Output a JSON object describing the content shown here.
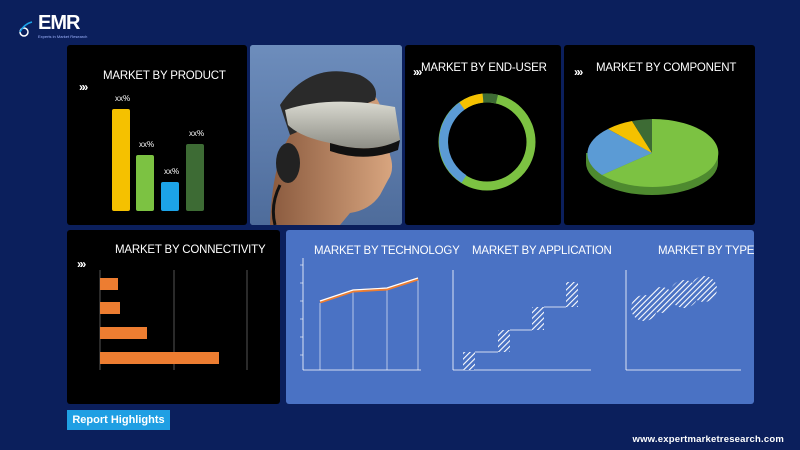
{
  "brand": {
    "logo_text": "EMR",
    "tagline": "Experts in Market Research",
    "website": "www.expertmarketresearch.com"
  },
  "panels": {
    "product": {
      "title": "MARKET BY PRODUCT",
      "labels": [
        "xx%",
        "xx%",
        "xx%",
        "xx%"
      ]
    },
    "end_user": {
      "title": "MARKET BY END-USER"
    },
    "component": {
      "title": "MARKET BY COMPONENT"
    },
    "connectivity": {
      "title": "MARKET BY CONNECTIVITY"
    },
    "technology": {
      "title": "MARKET BY TECHNOLOGY"
    },
    "application": {
      "title": "MARKET BY APPLICATION"
    },
    "type": {
      "title": "MARKET BY TYPE"
    }
  },
  "report_button": "Report Highlights",
  "colors": {
    "background": "#0b1f5c",
    "yellow": "#f5c100",
    "light_green": "#7cc242",
    "cyan": "#1ca3e8",
    "dark_green": "#3d6b34",
    "light_blue": "#5b9bd5",
    "orange": "#ed7d31",
    "panel_blue": "#4a72c4"
  }
}
